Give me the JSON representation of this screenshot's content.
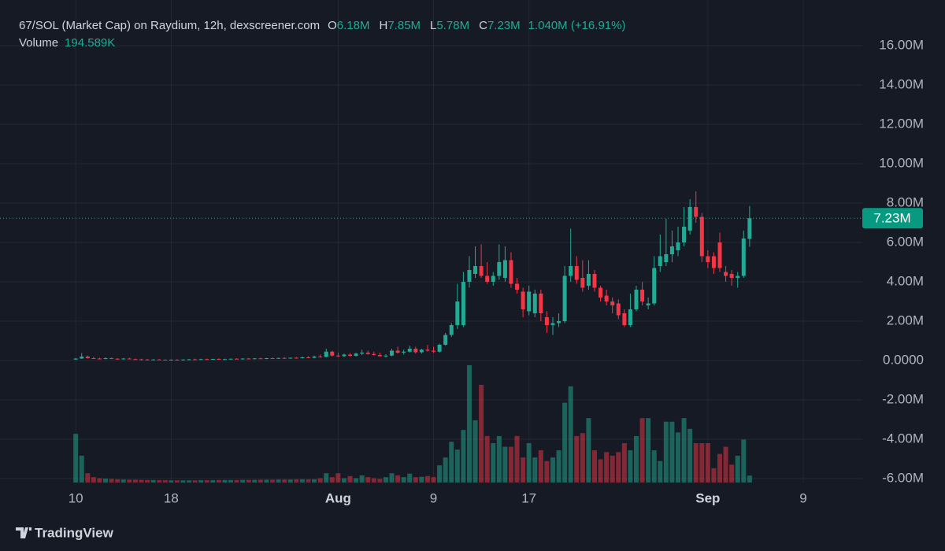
{
  "chart_data": {
    "type": "candlestick",
    "header": {
      "title": "67/SOL (Market Cap) on Raydium, 12h, dexscreener.com",
      "o_label": "O",
      "o": "6.18M",
      "h_label": "H",
      "h": "7.85M",
      "l_label": "L",
      "l": "5.78M",
      "c_label": "C",
      "c": "7.23M",
      "change": "1.040M (+16.91%)",
      "volume_label": "Volume",
      "volume": "194.589K"
    },
    "watermark": "TradingView",
    "colors": {
      "up": "#22ab94",
      "down": "#f23645",
      "background": "#161a25",
      "grid": "#242833",
      "text": "#b2b5be"
    },
    "grid": true,
    "xlim": [
      -12.7,
      131.9
    ],
    "xticks": [
      {
        "value": 0,
        "label": "10"
      },
      {
        "value": 16,
        "label": "18"
      },
      {
        "value": 44,
        "label": "Aug"
      },
      {
        "value": 60,
        "label": "9"
      },
      {
        "value": 76,
        "label": "17"
      },
      {
        "value": 106,
        "label": "Sep"
      },
      {
        "value": 122,
        "label": "9"
      }
    ],
    "ylim": [
      -6.2,
      17
    ],
    "yticks": [
      {
        "value": -6,
        "label": "-6.00M"
      },
      {
        "value": -4,
        "label": "-4.00M"
      },
      {
        "value": -2,
        "label": "-2.00M"
      },
      {
        "value": 0,
        "label": "0.0000"
      },
      {
        "value": 2,
        "label": "2.00M"
      },
      {
        "value": 4,
        "label": "4.00M"
      },
      {
        "value": 6,
        "label": "6.00M"
      },
      {
        "value": 8,
        "label": "8.00M"
      },
      {
        "value": 10,
        "label": "10.00M"
      },
      {
        "value": 12,
        "label": "12.00M"
      },
      {
        "value": 14,
        "label": "14.00M"
      },
      {
        "value": 16,
        "label": "16.00M"
      }
    ],
    "last_price": {
      "value": 7.23,
      "label": "7.23M"
    },
    "volume_lim": [
      0,
      3300
    ],
    "open": [
      0.05,
      0.1,
      0.2,
      0.12,
      0.1,
      0.08,
      0.12,
      0.09,
      0.07,
      0.1,
      0.07,
      0.06,
      0.05,
      0.04,
      0.05,
      0.04,
      0.03,
      0.04,
      0.03,
      0.05,
      0.06,
      0.05,
      0.07,
      0.06,
      0.08,
      0.06,
      0.07,
      0.09,
      0.07,
      0.1,
      0.08,
      0.11,
      0.09,
      0.12,
      0.1,
      0.13,
      0.11,
      0.14,
      0.12,
      0.16,
      0.14,
      0.2,
      0.18,
      0.45,
      0.25,
      0.22,
      0.3,
      0.24,
      0.35,
      0.4,
      0.33,
      0.28,
      0.22,
      0.25,
      0.5,
      0.4,
      0.45,
      0.6,
      0.42,
      0.55,
      0.5,
      0.45,
      0.8,
      1.3,
      1.8,
      1.8,
      4.0,
      4.4,
      4.8,
      4.3,
      4.0,
      4.3,
      4.2,
      5.1,
      3.9,
      3.5,
      2.5,
      2.4,
      3.4,
      2.2,
      1.8,
      1.9,
      2.0,
      4.3,
      4.8,
      4.2,
      3.8,
      4.4,
      3.7,
      3.3,
      3.0,
      2.9,
      2.4,
      1.8,
      2.6,
      3.6,
      2.8,
      2.9,
      4.8,
      5.0,
      5.4,
      5.6,
      6.0,
      6.6,
      7.8,
      7.3,
      5.3,
      5.3,
      6.0,
      4.5,
      4.4,
      4.2,
      4.3,
      6.18
    ],
    "high": [
      0.12,
      0.38,
      0.25,
      0.18,
      0.14,
      0.16,
      0.15,
      0.12,
      0.13,
      0.14,
      0.1,
      0.09,
      0.08,
      0.07,
      0.08,
      0.06,
      0.06,
      0.07,
      0.06,
      0.08,
      0.09,
      0.09,
      0.1,
      0.09,
      0.11,
      0.09,
      0.1,
      0.12,
      0.11,
      0.13,
      0.12,
      0.14,
      0.13,
      0.15,
      0.14,
      0.17,
      0.15,
      0.18,
      0.2,
      0.22,
      0.25,
      0.3,
      0.6,
      0.5,
      0.4,
      0.35,
      0.38,
      0.4,
      0.55,
      0.5,
      0.45,
      0.4,
      0.32,
      0.6,
      0.7,
      0.55,
      0.75,
      0.7,
      0.6,
      0.8,
      0.7,
      0.85,
      1.4,
      1.9,
      3.9,
      4.5,
      5.3,
      5.8,
      5.9,
      5.0,
      4.5,
      5.9,
      5.8,
      5.5,
      4.2,
      3.7,
      3.8,
      3.6,
      3.6,
      2.5,
      2.2,
      2.4,
      4.8,
      6.7,
      5.3,
      5.1,
      5.1,
      4.6,
      3.8,
      3.6,
      3.2,
      3.1,
      2.6,
      3.4,
      3.8,
      4.0,
      3.2,
      5.3,
      6.4,
      7.2,
      6.6,
      6.8,
      7.8,
      8.2,
      8.6,
      7.5,
      5.6,
      5.5,
      6.5,
      4.8,
      4.6,
      4.5,
      6.6,
      7.85
    ],
    "low": [
      0.03,
      0.08,
      0.1,
      0.08,
      0.06,
      0.06,
      0.07,
      0.05,
      0.05,
      0.06,
      0.04,
      0.03,
      0.02,
      0.02,
      0.03,
      0.02,
      0.01,
      0.02,
      0.01,
      0.03,
      0.04,
      0.03,
      0.04,
      0.04,
      0.05,
      0.04,
      0.05,
      0.06,
      0.05,
      0.07,
      0.06,
      0.08,
      0.07,
      0.09,
      0.08,
      0.1,
      0.09,
      0.11,
      0.1,
      0.12,
      0.12,
      0.15,
      0.16,
      0.2,
      0.18,
      0.18,
      0.2,
      0.2,
      0.28,
      0.3,
      0.25,
      0.2,
      0.15,
      0.22,
      0.35,
      0.3,
      0.4,
      0.35,
      0.35,
      0.45,
      0.38,
      0.4,
      0.75,
      1.2,
      1.6,
      1.7,
      3.7,
      4.2,
      4.2,
      3.9,
      3.8,
      4.1,
      4.0,
      3.7,
      3.4,
      2.2,
      2.3,
      2.2,
      2.0,
      1.4,
      1.3,
      1.7,
      1.9,
      4.0,
      3.9,
      3.5,
      3.6,
      3.5,
      3.0,
      2.8,
      2.4,
      2.1,
      1.7,
      1.7,
      2.5,
      2.8,
      2.6,
      2.8,
      4.5,
      4.8,
      5.0,
      5.3,
      5.8,
      6.4,
      7.0,
      5.0,
      4.7,
      4.4,
      4.5,
      4.0,
      3.8,
      3.7,
      4.2,
      5.78
    ],
    "close": [
      0.1,
      0.2,
      0.12,
      0.1,
      0.08,
      0.12,
      0.09,
      0.07,
      0.1,
      0.07,
      0.06,
      0.05,
      0.04,
      0.05,
      0.04,
      0.03,
      0.04,
      0.03,
      0.05,
      0.06,
      0.05,
      0.07,
      0.06,
      0.08,
      0.06,
      0.07,
      0.09,
      0.07,
      0.1,
      0.08,
      0.11,
      0.09,
      0.12,
      0.1,
      0.13,
      0.11,
      0.14,
      0.12,
      0.16,
      0.14,
      0.2,
      0.18,
      0.45,
      0.25,
      0.22,
      0.3,
      0.24,
      0.35,
      0.4,
      0.33,
      0.28,
      0.22,
      0.25,
      0.5,
      0.4,
      0.45,
      0.6,
      0.42,
      0.55,
      0.5,
      0.45,
      0.8,
      1.3,
      1.8,
      3.0,
      4.0,
      4.6,
      4.8,
      4.3,
      4.0,
      4.3,
      5.0,
      5.1,
      3.9,
      3.6,
      2.6,
      3.5,
      3.4,
      2.4,
      1.8,
      1.9,
      2.0,
      4.3,
      4.8,
      4.1,
      3.7,
      4.4,
      3.7,
      3.2,
      3.0,
      2.8,
      2.3,
      1.8,
      2.6,
      3.6,
      3.0,
      2.9,
      4.7,
      5.3,
      5.4,
      5.8,
      6.0,
      6.8,
      7.8,
      7.3,
      5.3,
      5.0,
      4.7,
      4.7,
      4.3,
      4.2,
      4.3,
      6.2,
      7.23
    ],
    "volume": [
      1360,
      750,
      260,
      150,
      120,
      110,
      100,
      90,
      85,
      80,
      80,
      75,
      70,
      70,
      65,
      65,
      60,
      60,
      60,
      60,
      60,
      65,
      65,
      65,
      70,
      70,
      70,
      70,
      75,
      75,
      75,
      80,
      80,
      80,
      85,
      85,
      85,
      90,
      90,
      90,
      90,
      120,
      260,
      150,
      260,
      120,
      180,
      120,
      200,
      150,
      120,
      100,
      150,
      260,
      200,
      150,
      250,
      150,
      160,
      180,
      150,
      480,
      700,
      1140,
      920,
      1470,
      3280,
      1740,
      2730,
      1300,
      1100,
      1300,
      1000,
      1000,
      1300,
      700,
      1100,
      700,
      900,
      600,
      700,
      900,
      2230,
      2690,
      1300,
      1380,
      1800,
      900,
      650,
      850,
      750,
      850,
      1100,
      900,
      1300,
      1800,
      1800,
      900,
      600,
      1700,
      1700,
      1400,
      1800,
      1500,
      1100,
      1100,
      1100,
      400,
      800,
      1000,
      500,
      750,
      1200,
      194.589
    ]
  }
}
